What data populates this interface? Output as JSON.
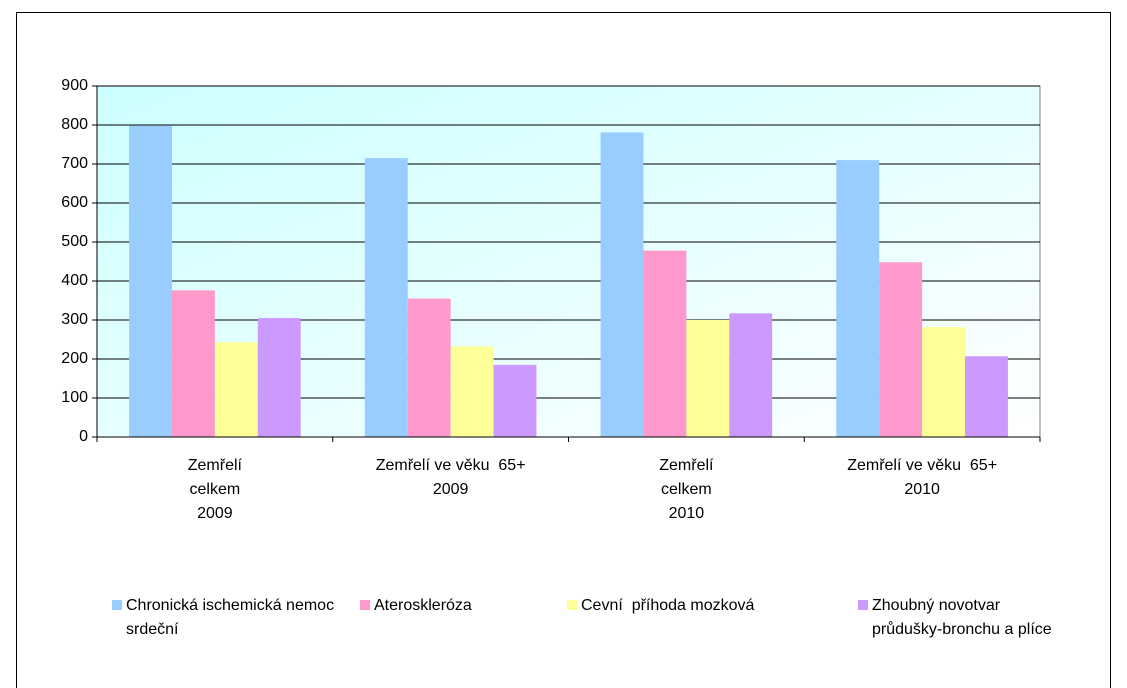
{
  "chart_data": {
    "type": "bar",
    "categories": [
      [
        "Zemřelí",
        "celkem",
        "2009"
      ],
      [
        "Zemřelí ve věku  65+",
        "2009"
      ],
      [
        "Zemřelí",
        "celkem",
        "2010"
      ],
      [
        "Zemřelí ve věku  65+",
        "2010"
      ]
    ],
    "series": [
      {
        "name": "Chronická ischemická nemoc srdeční",
        "color": "#99ccff",
        "values": [
          798,
          715,
          781,
          710
        ]
      },
      {
        "name": "Ateroskleróza",
        "color": "#ff99cc",
        "values": [
          376,
          355,
          478,
          448
        ]
      },
      {
        "name": "Cevní  příhoda mozková",
        "color": "#ffff99",
        "values": [
          243,
          232,
          300,
          282
        ]
      },
      {
        "name": "Zhoubný novotvar průdušky-bronchu a plíce",
        "color": "#cc99ff",
        "values": [
          305,
          185,
          317,
          207
        ]
      }
    ],
    "ylim": [
      0,
      900
    ],
    "yticks": [
      0,
      100,
      200,
      300,
      400,
      500,
      600,
      700,
      800,
      900
    ],
    "grid": true
  }
}
